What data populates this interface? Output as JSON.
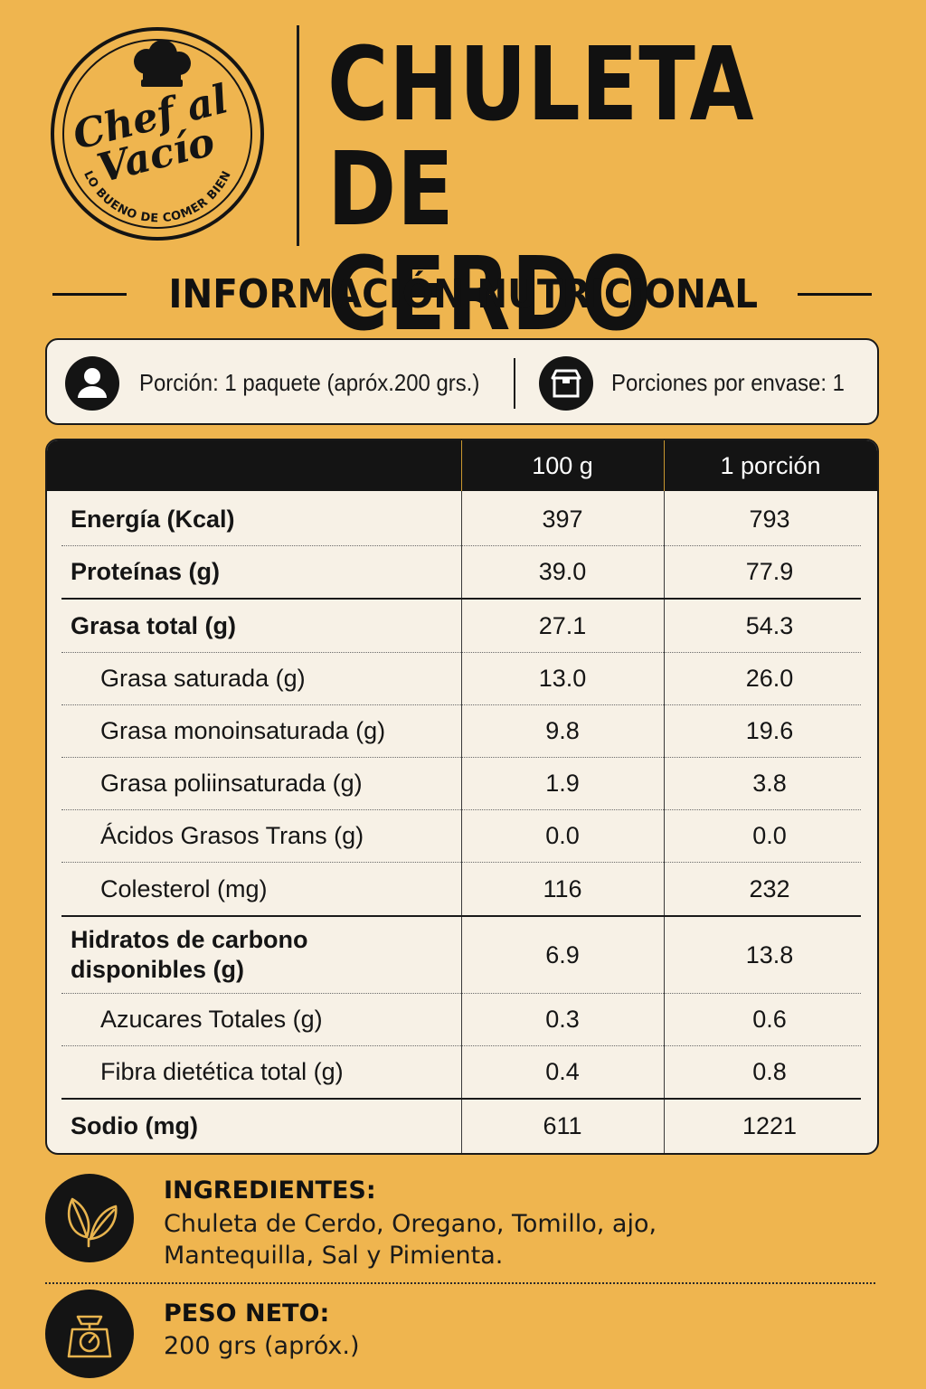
{
  "brand": {
    "name_line1": "Chef al",
    "name_line2": "Vacío",
    "tagline": "LO BUENO DE COMER BIEN"
  },
  "product": {
    "title_line1": "CHULETA",
    "title_line2": "DE CERDO"
  },
  "section_title": "INFORMACIÓN NUTRICIONAL",
  "portion": {
    "serving": "Porción: 1 paquete (apróx.200 grs.)",
    "servings_per_pack": "Porciones por envase: 1",
    "serving_icon": "person-icon",
    "pack_icon": "box-icon"
  },
  "table": {
    "headers": [
      "",
      "100 g",
      "1 porción"
    ],
    "rows": [
      {
        "label": "Energía (Kcal)",
        "per100": "397",
        "portion": "793"
      },
      {
        "label": "Proteínas (g)",
        "per100": "39.0",
        "portion": "77.9"
      },
      {
        "label": "Grasa total (g)",
        "per100": "27.1",
        "portion": "54.3"
      },
      {
        "label": "Grasa saturada (g)",
        "per100": "13.0",
        "portion": "26.0"
      },
      {
        "label": "Grasa monoinsaturada (g)",
        "per100": "9.8",
        "portion": "19.6"
      },
      {
        "label": "Grasa poliinsaturada (g)",
        "per100": "1.9",
        "portion": "3.8"
      },
      {
        "label": "Ácidos Grasos Trans (g)",
        "per100": "0.0",
        "portion": "0.0"
      },
      {
        "label": "Colesterol (mg)",
        "per100": "116",
        "portion": "232"
      },
      {
        "label": "Hidratos de carbono disponibles (g)",
        "per100": "6.9",
        "portion": "13.8"
      },
      {
        "label": "Azucares Totales (g)",
        "per100": "0.3",
        "portion": "0.6"
      },
      {
        "label": "Fibra dietética total (g)",
        "per100": "0.4",
        "portion": "0.8"
      },
      {
        "label": "Sodio (mg)",
        "per100": "611",
        "portion": "1221"
      }
    ]
  },
  "ingredients": {
    "title": "INGREDIENTES:",
    "text_line1": "Chuleta de Cerdo, Oregano, Tomillo, ajo,",
    "text_line2": "Mantequilla, Sal y Pimienta.",
    "icon": "leaves-icon"
  },
  "net_weight": {
    "title": "PESO NETO:",
    "text": "200 grs (apróx.)",
    "icon": "scale-icon"
  },
  "colors": {
    "background": "#efb54f",
    "dark": "#141414",
    "panel": "#f7f1e6",
    "accent_gold": "#e8b44e"
  }
}
